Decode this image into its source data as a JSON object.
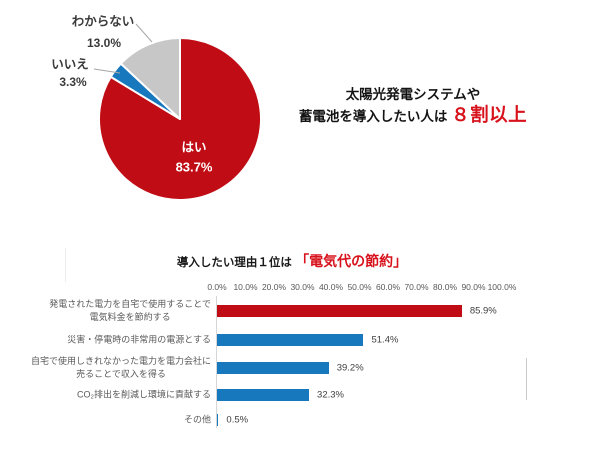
{
  "colors": {
    "red": "#c00d15",
    "red_text": "#d8121c",
    "blue": "#1878be",
    "gray": "#c7c7c7",
    "text_dark": "#141414",
    "text_gray": "#595959",
    "value_text": "#404040",
    "axis_line": "#d6d6d6",
    "leader_line": "#a6a6a6"
  },
  "pie": {
    "slices": [
      {
        "label": "はい",
        "value_label": "83.7%"
      },
      {
        "label": "いいえ",
        "value_label": "3.3%"
      },
      {
        "label": "わからない",
        "value_label": "13.0%"
      }
    ]
  },
  "headline": {
    "line1": "太陽光発電システムや",
    "line2_prefix": "蓄電池を導入したい人は ",
    "line2_emphasis": "８割以上"
  },
  "bar_chart": {
    "title_prefix": "導入したい理由１位は ",
    "title_emphasis": "「電気代の節約」",
    "ticks": [
      "0.0%",
      "10.0%",
      "20.0%",
      "30.0%",
      "40.0%",
      "50.0%",
      "60.0%",
      "70.0%",
      "80.0%",
      "90.0%",
      "100.0%"
    ],
    "rows": [
      {
        "label_lines": [
          "発電された電力を自宅で使用することで",
          "電気料金を節約する"
        ],
        "value": 85.9,
        "value_label": "85.9%",
        "color": "#c00d15"
      },
      {
        "label_lines": [
          "災害・停電時の非常用の電源とする"
        ],
        "value": 51.4,
        "value_label": "51.4%",
        "color": "#1878be"
      },
      {
        "label_lines": [
          "自宅で使用しきれなかった電力を電力会社に",
          "売ることで収入を得る"
        ],
        "value": 39.2,
        "value_label": "39.2%",
        "color": "#1878be"
      },
      {
        "label_lines": [
          "CO₂排出を削減し環境に貢献する"
        ],
        "value": 32.3,
        "value_label": "32.3%",
        "color": "#1878be"
      },
      {
        "label_lines": [
          "その他"
        ],
        "value": 0.5,
        "value_label": "0.5%",
        "color": "#1878be"
      }
    ]
  },
  "chart_data": [
    {
      "type": "pie",
      "labels": [
        "はい",
        "いいえ",
        "わからない"
      ],
      "values": [
        83.7,
        3.3,
        13.0
      ],
      "colors": [
        "#c00d15",
        "#1878be",
        "#c7c7c7"
      ],
      "start_angle_deg": 0,
      "direction": "clockwise",
      "annotation": "太陽光発電システムや蓄電池を導入したい人は８割以上"
    },
    {
      "type": "bar",
      "orientation": "horizontal",
      "title": "導入したい理由１位は「電気代の節約」",
      "categories": [
        "発電された電力を自宅で使用することで電気料金を節約する",
        "災害・停電時の非常用の電源とする",
        "自宅で使用しきれなかった電力を電力会社に売ることで収入を得る",
        "CO₂排出を削減し環境に貢献する",
        "その他"
      ],
      "values": [
        85.9,
        51.4,
        39.2,
        32.3,
        0.5
      ],
      "colors": [
        "#c00d15",
        "#1878be",
        "#1878be",
        "#1878be",
        "#1878be"
      ],
      "xlabel": "",
      "ylabel": "",
      "xlim": [
        0,
        100
      ],
      "x_ticks": [
        "0.0%",
        "10.0%",
        "20.0%",
        "30.0%",
        "40.0%",
        "50.0%",
        "60.0%",
        "70.0%",
        "80.0%",
        "90.0%",
        "100.0%"
      ],
      "grid": false,
      "legend": false
    }
  ]
}
